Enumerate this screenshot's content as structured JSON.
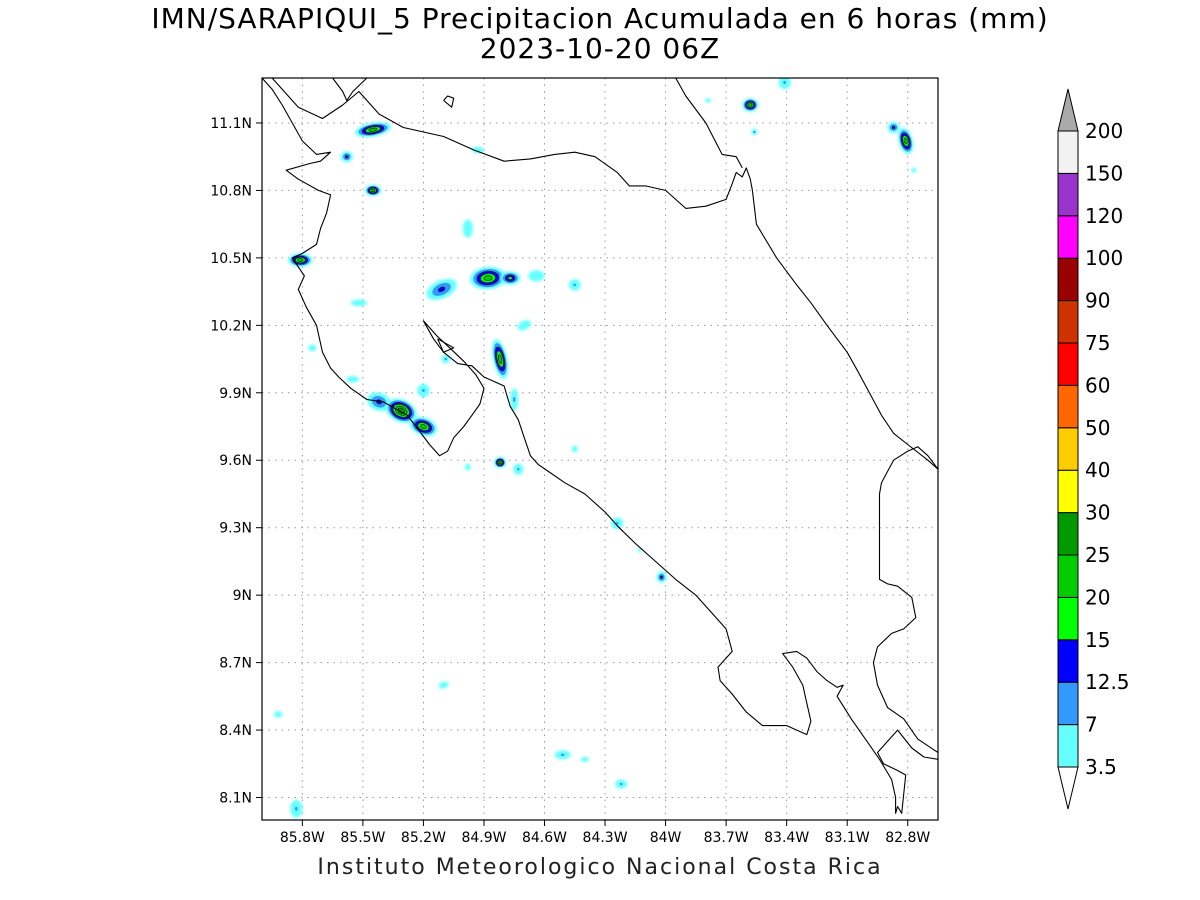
{
  "title": {
    "line1": "IMN/SARAPIQUI_5 Precipitacion Acumulada en 6 horas (mm)",
    "line2": "2023-10-20 06Z"
  },
  "footer": "Instituto Meteorologico Nacional Costa Rica",
  "map": {
    "lon_range": [
      -86.0,
      -82.65
    ],
    "lat_range": [
      8.0,
      11.3
    ],
    "lon_ticks": [
      {
        "value": -85.8,
        "label": "85.8W"
      },
      {
        "value": -85.5,
        "label": "85.5W"
      },
      {
        "value": -85.2,
        "label": "85.2W"
      },
      {
        "value": -84.9,
        "label": "84.9W"
      },
      {
        "value": -84.6,
        "label": "84.6W"
      },
      {
        "value": -84.3,
        "label": "84.3W"
      },
      {
        "value": -84.0,
        "label": "84W"
      },
      {
        "value": -83.7,
        "label": "83.7W"
      },
      {
        "value": -83.4,
        "label": "83.4W"
      },
      {
        "value": -83.1,
        "label": "83.1W"
      },
      {
        "value": -82.8,
        "label": "82.8W"
      }
    ],
    "lat_ticks": [
      {
        "value": 8.1,
        "label": "8.1N"
      },
      {
        "value": 8.4,
        "label": "8.4N"
      },
      {
        "value": 8.7,
        "label": "8.7N"
      },
      {
        "value": 9.0,
        "label": "9N"
      },
      {
        "value": 9.3,
        "label": "9.3N"
      },
      {
        "value": 9.6,
        "label": "9.6N"
      },
      {
        "value": 9.9,
        "label": "9.9N"
      },
      {
        "value": 10.2,
        "label": "10.2N"
      },
      {
        "value": 10.5,
        "label": "10.5N"
      },
      {
        "value": 10.8,
        "label": "10.8N"
      },
      {
        "value": 11.1,
        "label": "11.1N"
      }
    ],
    "grid": true,
    "colors": {
      "coast": "#000000",
      "grid": "#999999",
      "contour": "#222222"
    }
  },
  "legend": {
    "levels": [
      "3.5",
      "7",
      "12.5",
      "15",
      "20",
      "25",
      "30",
      "40",
      "50",
      "60",
      "75",
      "90",
      "100",
      "120",
      "150",
      "200"
    ],
    "colors": [
      "#66ffff",
      "#3399ff",
      "#0000ff",
      "#00ff00",
      "#00cc00",
      "#009900",
      "#ffff00",
      "#ffcc00",
      "#ff6600",
      "#ff0000",
      "#cc3300",
      "#990000",
      "#ff00ff",
      "#9933cc",
      "#f2f2f2",
      "#aaaaaa"
    ]
  },
  "cells": [
    {
      "lon": -85.45,
      "lat": 11.07,
      "rx": 0.09,
      "ry": 0.03,
      "rot": -10,
      "max": 20
    },
    {
      "lon": -85.58,
      "lat": 10.95,
      "rx": 0.03,
      "ry": 0.025,
      "rot": 0,
      "max": 12.5
    },
    {
      "lon": -85.45,
      "lat": 10.8,
      "rx": 0.04,
      "ry": 0.025,
      "rot": 0,
      "max": 20
    },
    {
      "lon": -85.81,
      "lat": 10.49,
      "rx": 0.06,
      "ry": 0.03,
      "rot": 0,
      "max": 20
    },
    {
      "lon": -85.52,
      "lat": 10.3,
      "rx": 0.04,
      "ry": 0.015,
      "rot": 0,
      "max": 3.5
    },
    {
      "lon": -85.11,
      "lat": 10.36,
      "rx": 0.08,
      "ry": 0.04,
      "rot": -25,
      "max": 12.5
    },
    {
      "lon": -84.88,
      "lat": 10.41,
      "rx": 0.09,
      "ry": 0.05,
      "rot": -5,
      "max": 20
    },
    {
      "lon": -84.77,
      "lat": 10.41,
      "rx": 0.05,
      "ry": 0.03,
      "rot": 0,
      "max": 15
    },
    {
      "lon": -84.64,
      "lat": 10.42,
      "rx": 0.04,
      "ry": 0.025,
      "rot": 0,
      "max": 3.5
    },
    {
      "lon": -84.45,
      "lat": 10.38,
      "rx": 0.03,
      "ry": 0.025,
      "rot": 0,
      "max": 7
    },
    {
      "lon": -84.98,
      "lat": 10.63,
      "rx": 0.025,
      "ry": 0.04,
      "rot": 0,
      "max": 3.5
    },
    {
      "lon": -84.82,
      "lat": 10.05,
      "rx": 0.035,
      "ry": 0.09,
      "rot": -12,
      "max": 20
    },
    {
      "lon": -84.7,
      "lat": 10.2,
      "rx": 0.035,
      "ry": 0.02,
      "rot": -30,
      "max": 3.5
    },
    {
      "lon": -84.75,
      "lat": 9.87,
      "rx": 0.02,
      "ry": 0.05,
      "rot": 0,
      "max": 7
    },
    {
      "lon": -85.42,
      "lat": 9.86,
      "rx": 0.06,
      "ry": 0.04,
      "rot": 20,
      "max": 12.5
    },
    {
      "lon": -85.31,
      "lat": 9.82,
      "rx": 0.08,
      "ry": 0.05,
      "rot": 25,
      "max": 25
    },
    {
      "lon": -85.2,
      "lat": 9.75,
      "rx": 0.07,
      "ry": 0.04,
      "rot": 20,
      "max": 20
    },
    {
      "lon": -85.2,
      "lat": 9.91,
      "rx": 0.03,
      "ry": 0.03,
      "rot": 0,
      "max": 7
    },
    {
      "lon": -85.09,
      "lat": 10.05,
      "rx": 0.02,
      "ry": 0.02,
      "rot": 0,
      "max": 7
    },
    {
      "lon": -85.55,
      "lat": 9.96,
      "rx": 0.03,
      "ry": 0.015,
      "rot": 0,
      "max": 3.5
    },
    {
      "lon": -85.75,
      "lat": 10.1,
      "rx": 0.02,
      "ry": 0.015,
      "rot": 0,
      "max": 3.5
    },
    {
      "lon": -84.82,
      "lat": 9.59,
      "rx": 0.03,
      "ry": 0.025,
      "rot": 0,
      "max": 20
    },
    {
      "lon": -84.73,
      "lat": 9.56,
      "rx": 0.025,
      "ry": 0.025,
      "rot": 0,
      "max": 7
    },
    {
      "lon": -84.98,
      "lat": 9.57,
      "rx": 0.015,
      "ry": 0.015,
      "rot": 0,
      "max": 3.5
    },
    {
      "lon": -84.45,
      "lat": 9.65,
      "rx": 0.015,
      "ry": 0.015,
      "rot": 0,
      "max": 3.5
    },
    {
      "lon": -84.24,
      "lat": 9.32,
      "rx": 0.03,
      "ry": 0.025,
      "rot": -30,
      "max": 7
    },
    {
      "lon": -84.02,
      "lat": 9.08,
      "rx": 0.025,
      "ry": 0.025,
      "rot": 0,
      "max": 12.5
    },
    {
      "lon": -84.13,
      "lat": 9.2,
      "rx": 0.01,
      "ry": 0.01,
      "rot": 0,
      "max": 3.5
    },
    {
      "lon": -85.1,
      "lat": 8.6,
      "rx": 0.025,
      "ry": 0.015,
      "rot": -20,
      "max": 3.5
    },
    {
      "lon": -84.51,
      "lat": 8.29,
      "rx": 0.04,
      "ry": 0.02,
      "rot": 0,
      "max": 7
    },
    {
      "lon": -84.4,
      "lat": 8.27,
      "rx": 0.02,
      "ry": 0.012,
      "rot": 0,
      "max": 3.5
    },
    {
      "lon": -84.22,
      "lat": 8.16,
      "rx": 0.03,
      "ry": 0.02,
      "rot": 0,
      "max": 7
    },
    {
      "lon": -85.92,
      "lat": 8.47,
      "rx": 0.02,
      "ry": 0.015,
      "rot": 0,
      "max": 3.5
    },
    {
      "lon": -85.83,
      "lat": 8.05,
      "rx": 0.03,
      "ry": 0.04,
      "rot": 0,
      "max": 7
    },
    {
      "lon": -83.58,
      "lat": 11.18,
      "rx": 0.04,
      "ry": 0.03,
      "rot": 0,
      "max": 20
    },
    {
      "lon": -83.56,
      "lat": 11.06,
      "rx": 0.015,
      "ry": 0.015,
      "rot": 0,
      "max": 7
    },
    {
      "lon": -83.41,
      "lat": 11.28,
      "rx": 0.03,
      "ry": 0.03,
      "rot": 0,
      "max": 7
    },
    {
      "lon": -83.79,
      "lat": 11.2,
      "rx": 0.015,
      "ry": 0.01,
      "rot": 0,
      "max": 3.5
    },
    {
      "lon": -82.87,
      "lat": 11.08,
      "rx": 0.03,
      "ry": 0.025,
      "rot": 0,
      "max": 12.5
    },
    {
      "lon": -82.81,
      "lat": 11.02,
      "rx": 0.035,
      "ry": 0.06,
      "rot": -15,
      "max": 20
    },
    {
      "lon": -82.77,
      "lat": 10.89,
      "rx": 0.012,
      "ry": 0.012,
      "rot": 0,
      "max": 3.5
    },
    {
      "lon": -84.93,
      "lat": 10.98,
      "rx": 0.03,
      "ry": 0.015,
      "rot": 0,
      "max": 3.5
    }
  ],
  "coastlines": [
    [
      [
        -86.0,
        11.3
      ],
      [
        -85.95,
        11.25
      ],
      [
        -85.9,
        11.18
      ],
      [
        -85.85,
        11.1
      ],
      [
        -85.8,
        11.02
      ],
      [
        -85.73,
        10.96
      ],
      [
        -85.66,
        10.97
      ],
      [
        -85.71,
        10.93
      ],
      [
        -85.76,
        10.92
      ],
      [
        -85.88,
        10.89
      ],
      [
        -85.82,
        10.85
      ],
      [
        -85.72,
        10.8
      ],
      [
        -85.66,
        10.78
      ],
      [
        -85.68,
        10.7
      ],
      [
        -85.71,
        10.63
      ],
      [
        -85.73,
        10.56
      ],
      [
        -85.8,
        10.52
      ],
      [
        -85.85,
        10.5
      ],
      [
        -85.82,
        10.46
      ],
      [
        -85.79,
        10.42
      ],
      [
        -85.82,
        10.36
      ],
      [
        -85.78,
        10.28
      ],
      [
        -85.73,
        10.2
      ],
      [
        -85.7,
        10.08
      ],
      [
        -85.66,
        10.01
      ],
      [
        -85.62,
        9.97
      ],
      [
        -85.56,
        9.92
      ],
      [
        -85.48,
        9.87
      ],
      [
        -85.4,
        9.86
      ],
      [
        -85.34,
        9.83
      ],
      [
        -85.28,
        9.8
      ],
      [
        -85.22,
        9.73
      ],
      [
        -85.17,
        9.67
      ],
      [
        -85.12,
        9.62
      ],
      [
        -85.08,
        9.64
      ],
      [
        -85.05,
        9.7
      ],
      [
        -85.0,
        9.75
      ],
      [
        -84.96,
        9.8
      ],
      [
        -84.92,
        9.85
      ],
      [
        -84.9,
        9.92
      ],
      [
        -84.94,
        9.98
      ],
      [
        -85.0,
        10.04
      ],
      [
        -85.07,
        10.1
      ],
      [
        -85.13,
        10.15
      ],
      [
        -85.2,
        10.22
      ],
      [
        -85.15,
        10.14
      ],
      [
        -85.1,
        10.08
      ],
      [
        -85.03,
        10.03
      ],
      [
        -84.96,
        10.02
      ],
      [
        -84.9,
        9.97
      ],
      [
        -84.85,
        9.95
      ],
      [
        -84.8,
        9.93
      ],
      [
        -84.77,
        9.84
      ],
      [
        -84.73,
        9.78
      ],
      [
        -84.7,
        9.7
      ],
      [
        -84.67,
        9.62
      ],
      [
        -84.63,
        9.58
      ],
      [
        -84.58,
        9.55
      ],
      [
        -84.5,
        9.5
      ],
      [
        -84.4,
        9.45
      ],
      [
        -84.3,
        9.37
      ],
      [
        -84.23,
        9.3
      ],
      [
        -84.15,
        9.23
      ],
      [
        -84.05,
        9.15
      ],
      [
        -83.95,
        9.07
      ],
      [
        -83.85,
        9.0
      ],
      [
        -83.78,
        8.93
      ],
      [
        -83.7,
        8.85
      ],
      [
        -83.67,
        8.75
      ],
      [
        -83.7,
        8.72
      ],
      [
        -83.74,
        8.68
      ],
      [
        -83.73,
        8.62
      ],
      [
        -83.67,
        8.56
      ],
      [
        -83.6,
        8.48
      ],
      [
        -83.52,
        8.42
      ],
      [
        -83.4,
        8.42
      ],
      [
        -83.3,
        8.38
      ],
      [
        -83.28,
        8.44
      ],
      [
        -83.3,
        8.52
      ],
      [
        -83.32,
        8.6
      ],
      [
        -83.37,
        8.68
      ],
      [
        -83.42,
        8.74
      ],
      [
        -83.35,
        8.75
      ],
      [
        -83.3,
        8.72
      ],
      [
        -83.25,
        8.66
      ],
      [
        -83.2,
        8.62
      ],
      [
        -83.15,
        8.59
      ],
      [
        -83.12,
        8.6
      ],
      [
        -83.15,
        8.55
      ],
      [
        -83.08,
        8.45
      ],
      [
        -83.01,
        8.36
      ],
      [
        -82.94,
        8.27
      ],
      [
        -82.88,
        8.18
      ],
      [
        -82.86,
        8.1
      ],
      [
        -82.86,
        8.03
      ],
      [
        -82.85,
        8.06
      ],
      [
        -82.83,
        8.03
      ],
      [
        -82.81,
        8.2
      ],
      [
        -82.85,
        8.22
      ],
      [
        -82.92,
        8.25
      ],
      [
        -82.95,
        8.3
      ],
      [
        -82.9,
        8.35
      ],
      [
        -82.85,
        8.4
      ],
      [
        -82.78,
        8.32
      ],
      [
        -82.72,
        8.28
      ],
      [
        -82.65,
        8.27
      ]
    ],
    [
      [
        -82.65,
        9.56
      ],
      [
        -82.7,
        9.62
      ],
      [
        -82.75,
        9.66
      ],
      [
        -82.8,
        9.64
      ],
      [
        -82.87,
        9.6
      ],
      [
        -82.93,
        9.5
      ],
      [
        -82.94,
        9.45
      ],
      [
        -82.94,
        9.07
      ],
      [
        -82.9,
        9.05
      ],
      [
        -82.85,
        9.04
      ],
      [
        -82.78,
        8.99
      ],
      [
        -82.76,
        8.9
      ],
      [
        -82.82,
        8.85
      ],
      [
        -82.88,
        8.83
      ],
      [
        -82.95,
        8.77
      ],
      [
        -82.97,
        8.7
      ],
      [
        -82.95,
        8.6
      ],
      [
        -82.9,
        8.5
      ],
      [
        -82.82,
        8.45
      ],
      [
        -82.75,
        8.36
      ],
      [
        -82.7,
        8.33
      ],
      [
        -82.65,
        8.3
      ]
    ],
    [
      [
        -85.95,
        11.3
      ],
      [
        -85.82,
        11.17
      ],
      [
        -85.7,
        11.12
      ],
      [
        -85.6,
        11.18
      ],
      [
        -85.52,
        11.24
      ],
      [
        -85.42,
        11.14
      ],
      [
        -85.3,
        11.08
      ],
      [
        -85.1,
        11.04
      ],
      [
        -84.95,
        10.98
      ],
      [
        -84.8,
        10.93
      ],
      [
        -84.67,
        10.94
      ],
      [
        -84.55,
        10.96
      ],
      [
        -84.45,
        10.97
      ],
      [
        -84.35,
        10.95
      ],
      [
        -84.24,
        10.88
      ],
      [
        -84.18,
        10.82
      ],
      [
        -84.1,
        10.82
      ],
      [
        -84.0,
        10.8
      ],
      [
        -83.95,
        10.76
      ],
      [
        -83.9,
        10.72
      ],
      [
        -83.8,
        10.73
      ],
      [
        -83.7,
        10.76
      ],
      [
        -83.67,
        10.83
      ],
      [
        -83.65,
        10.88
      ],
      [
        -83.62,
        10.86
      ],
      [
        -83.6,
        10.9
      ],
      [
        -83.58,
        10.85
      ],
      [
        -83.57,
        10.8
      ],
      [
        -83.55,
        10.65
      ],
      [
        -83.45,
        10.5
      ],
      [
        -83.35,
        10.38
      ],
      [
        -83.28,
        10.3
      ],
      [
        -83.2,
        10.2
      ],
      [
        -83.1,
        10.08
      ],
      [
        -83.05,
        10.0
      ],
      [
        -82.99,
        9.9
      ],
      [
        -82.93,
        9.8
      ],
      [
        -82.87,
        9.72
      ],
      [
        -82.8,
        9.67
      ],
      [
        -82.7,
        9.6
      ],
      [
        -82.65,
        9.56
      ]
    ],
    [
      [
        -83.95,
        11.3
      ],
      [
        -83.9,
        11.22
      ],
      [
        -83.8,
        11.1
      ],
      [
        -83.72,
        10.96
      ],
      [
        -83.65,
        10.95
      ],
      [
        -83.62,
        10.9
      ]
    ],
    [
      [
        -85.65,
        11.3
      ],
      [
        -85.6,
        11.24
      ],
      [
        -85.58,
        11.2
      ],
      [
        -85.55,
        11.24
      ],
      [
        -85.48,
        11.3
      ]
    ],
    [
      [
        -85.1,
        11.2
      ],
      [
        -85.06,
        11.17
      ],
      [
        -85.05,
        11.21
      ],
      [
        -85.08,
        11.22
      ],
      [
        -85.1,
        11.2
      ]
    ],
    [
      [
        -85.13,
        10.14
      ],
      [
        -85.09,
        10.12
      ],
      [
        -85.05,
        10.1
      ],
      [
        -85.1,
        10.08
      ],
      [
        -85.13,
        10.14
      ]
    ]
  ]
}
